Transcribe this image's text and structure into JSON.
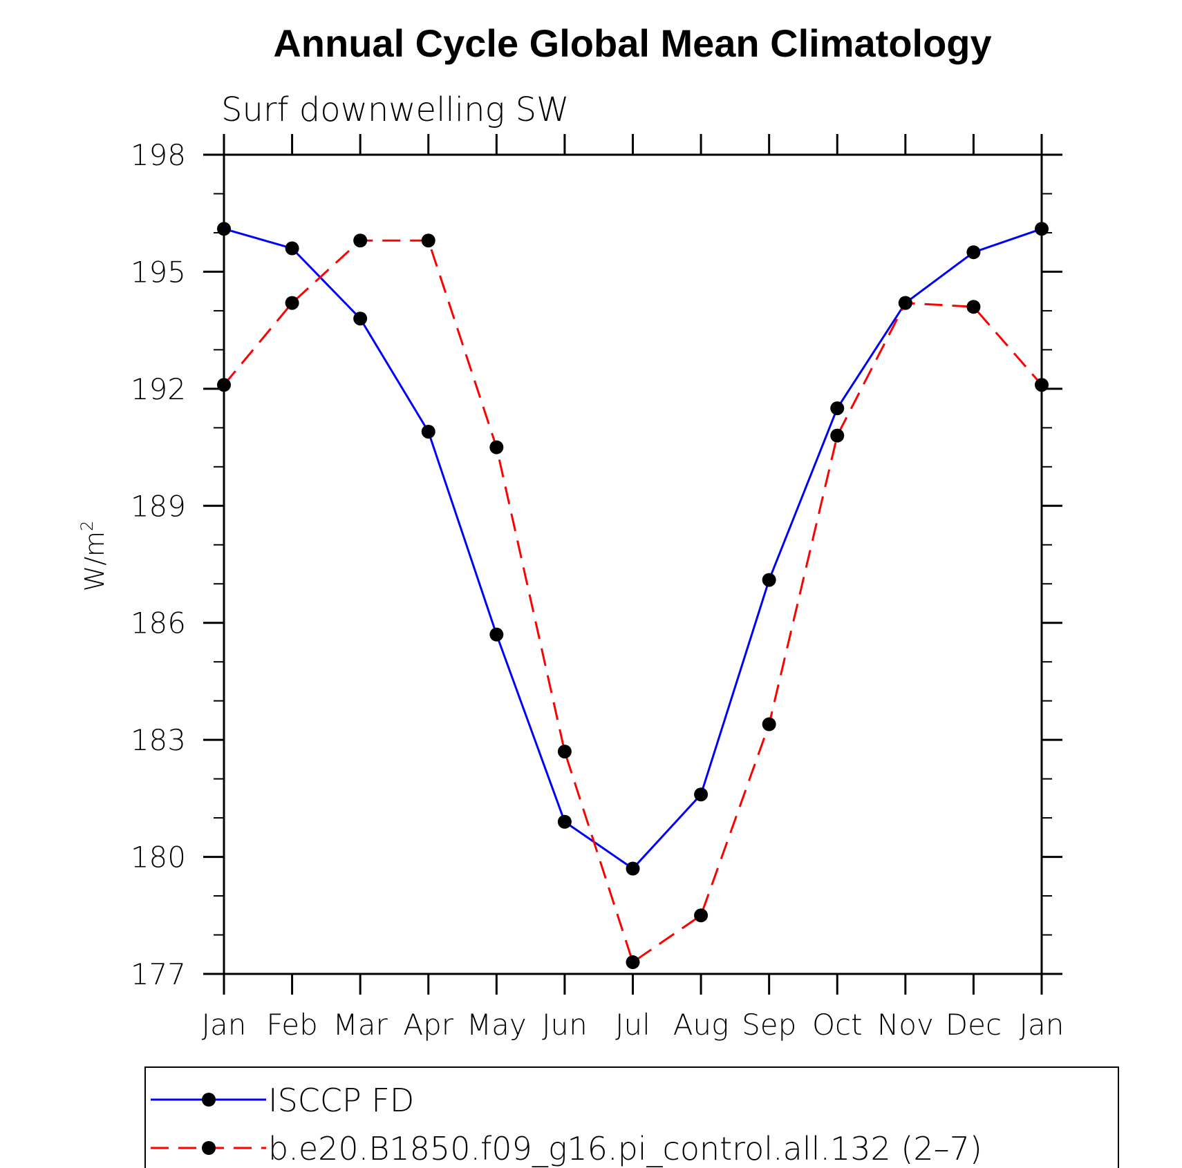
{
  "chart_data": {
    "type": "line",
    "title": "Annual Cycle Global Mean Climatology",
    "subtitle": "Surf downwelling SW",
    "xlabel": "",
    "ylabel": "W/m",
    "ylabel_superscript": "2",
    "ylim": [
      177,
      198
    ],
    "yticks": [
      177,
      180,
      183,
      186,
      189,
      192,
      195,
      198
    ],
    "categories": [
      "Jan",
      "Feb",
      "Mar",
      "Apr",
      "May",
      "Jun",
      "Jul",
      "Aug",
      "Sep",
      "Oct",
      "Nov",
      "Dec",
      "Jan"
    ],
    "series": [
      {
        "name": "ISCCP FD",
        "color": "#0000ff",
        "dash": "solid",
        "values": [
          196.1,
          195.6,
          193.8,
          190.9,
          185.7,
          180.9,
          179.7,
          181.6,
          187.1,
          191.5,
          194.2,
          195.5,
          196.1
        ]
      },
      {
        "name": "b.e20.B1850.f09_g16.pi_control.all.132 (2–7)",
        "color": "#ff0000",
        "dash": "dashed",
        "values": [
          192.1,
          194.2,
          195.8,
          195.8,
          190.5,
          182.7,
          177.3,
          178.5,
          183.4,
          190.8,
          194.2,
          194.1,
          192.1
        ]
      }
    ],
    "legend_position": "bottom",
    "marker_color": "#000000"
  }
}
